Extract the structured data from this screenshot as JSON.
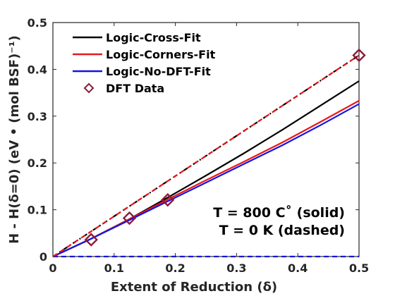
{
  "chart_data": {
    "type": "line",
    "xlabel": "Extent of Reduction (δ)",
    "ylabel": "H - H(δ=0) (eV • (mol BSF)⁻¹)",
    "xlim": [
      0,
      0.5
    ],
    "ylim": [
      0,
      0.5
    ],
    "x_ticks": [
      "0",
      "0.1",
      "0.2",
      "0.3",
      "0.4",
      "0.5"
    ],
    "y_ticks": [
      "0",
      "0.1",
      "0.2",
      "0.3",
      "0.4",
      "0.5"
    ],
    "x_tick_values": [
      0,
      0.1,
      0.2,
      0.3,
      0.4,
      0.5
    ],
    "y_tick_values": [
      0,
      0.1,
      0.2,
      0.3,
      0.4,
      0.5
    ],
    "grid": false,
    "legend_position": "top-left",
    "series": [
      {
        "name": "Logic-Cross-Fit",
        "color": "#000000",
        "style": "solid",
        "x": [
          0,
          0.0625,
          0.125,
          0.1875,
          0.25,
          0.3125,
          0.375,
          0.4375,
          0.5
        ],
        "y": [
          0,
          0.038,
          0.08,
          0.126,
          0.173,
          0.221,
          0.271,
          0.323,
          0.375
        ]
      },
      {
        "name": "Logic-Corners-Fit",
        "color": "#e8181c",
        "style": "solid",
        "x": [
          0,
          0.0625,
          0.125,
          0.1875,
          0.25,
          0.3125,
          0.375,
          0.4375,
          0.5
        ],
        "y": [
          0,
          0.038,
          0.08,
          0.122,
          0.163,
          0.203,
          0.244,
          0.288,
          0.333
        ]
      },
      {
        "name": "Logic-No-DFT-Fit",
        "color": "#1515e0",
        "style": "solid",
        "x": [
          0,
          0.0625,
          0.125,
          0.1875,
          0.25,
          0.3125,
          0.375,
          0.4375,
          0.5
        ],
        "y": [
          0,
          0.038,
          0.078,
          0.118,
          0.158,
          0.198,
          0.238,
          0.281,
          0.326
        ]
      },
      {
        "name": "",
        "color": "#000000",
        "style": "dashdot",
        "x": [
          0,
          0.5
        ],
        "y": [
          0,
          0.43
        ]
      },
      {
        "name": "",
        "color": "#e8181c",
        "style": "dashed",
        "x": [
          0,
          0.5
        ],
        "y": [
          0,
          0.43
        ]
      },
      {
        "name": "",
        "color": "#1515e0",
        "style": "dashed",
        "x": [
          0,
          0.5
        ],
        "y": [
          0,
          0
        ]
      },
      {
        "name": "DFT Data",
        "color": "#8b1c3a",
        "style": "markers",
        "marker": "diamond",
        "x": [
          0.0625,
          0.125,
          0.1875,
          0.5
        ],
        "y": [
          0.036,
          0.082,
          0.121,
          0.43
        ]
      }
    ],
    "annotations": [
      "T = 800 C˚ (solid)",
      "T = 0 K (dashed)"
    ]
  }
}
